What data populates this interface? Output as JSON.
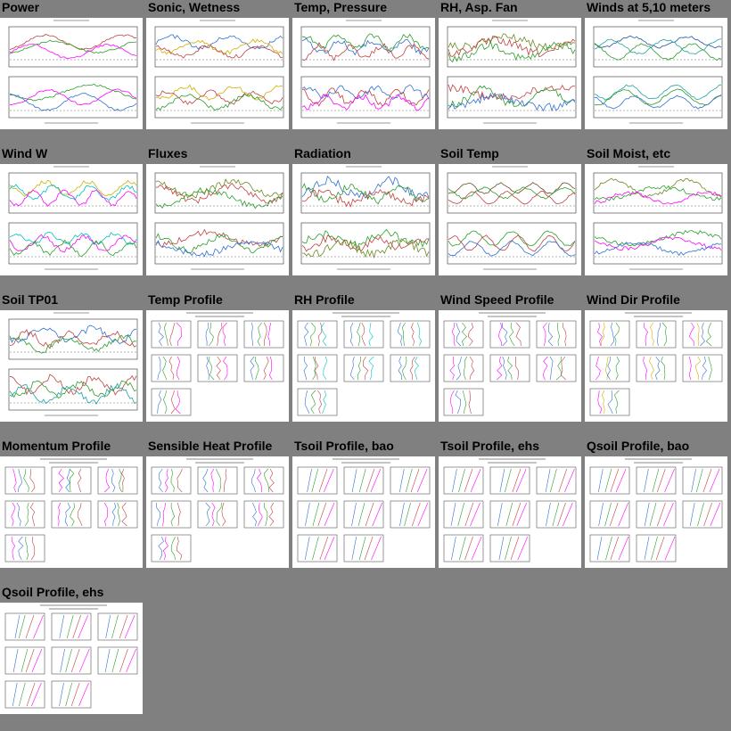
{
  "page": {
    "background": "#808080",
    "plots": [
      {
        "title": "Power",
        "kind": "timeseries",
        "colors": [
          "#c04040",
          "#2a9d2a",
          "#ff00ff",
          "#3070d0"
        ]
      },
      {
        "title": "Sonic, Wetness",
        "kind": "timeseries",
        "colors": [
          "#3070d0",
          "#d0b000",
          "#c04040",
          "#2a9d2a"
        ]
      },
      {
        "title": "Temp, Pressure",
        "kind": "timeseries",
        "colors": [
          "#2a9d2a",
          "#3070d0",
          "#c04040",
          "#ff00ff"
        ]
      },
      {
        "title": "RH, Asp. Fan",
        "kind": "timeseries",
        "colors": [
          "#6a8a20",
          "#c04040",
          "#2a9d2a",
          "#3070d0"
        ]
      },
      {
        "title": "Winds at 5,10 meters",
        "kind": "timeseries",
        "colors": [
          "#2050a0",
          "#20a0a0",
          "#2a9d2a",
          "#3070d0"
        ]
      },
      {
        "title": "Wind W",
        "kind": "timeseries",
        "colors": [
          "#d0b000",
          "#00c0c0",
          "#ff00ff",
          "#2a9d2a"
        ]
      },
      {
        "title": "Fluxes",
        "kind": "timeseries",
        "colors": [
          "#6a8a20",
          "#c04040",
          "#2a9d2a",
          "#3070d0"
        ]
      },
      {
        "title": "Radiation",
        "kind": "timeseries",
        "colors": [
          "#3070d0",
          "#2a9d2a",
          "#c04040",
          "#6a8a20"
        ]
      },
      {
        "title": "Soil Temp",
        "kind": "timeseries",
        "colors": [
          "#6a4a20",
          "#2a9d2a",
          "#c04040",
          "#3070d0"
        ]
      },
      {
        "title": "Soil Moist, etc",
        "kind": "timeseries",
        "colors": [
          "#6a8a20",
          "#2a9d2a",
          "#ff00ff",
          "#3070d0"
        ]
      },
      {
        "title": "Soil TP01",
        "kind": "timeseries",
        "colors": [
          "#3070d0",
          "#c04040",
          "#2a9d2a",
          "#20a0a0"
        ]
      },
      {
        "title": "Temp Profile",
        "kind": "profile",
        "colors": [
          "#3070d0",
          "#2a9d2a",
          "#c04040",
          "#ff00ff"
        ]
      },
      {
        "title": "RH Profile",
        "kind": "profile",
        "colors": [
          "#3070d0",
          "#2a9d2a",
          "#c04040",
          "#00c0c0"
        ]
      },
      {
        "title": "Wind Speed Profile",
        "kind": "profile",
        "colors": [
          "#ff00ff",
          "#3070d0",
          "#2a9d2a",
          "#c04040"
        ]
      },
      {
        "title": "Wind Dir Profile",
        "kind": "profile",
        "colors": [
          "#ff00ff",
          "#d0b000",
          "#3070d0",
          "#2a9d2a"
        ]
      },
      {
        "title": "Momentum Profile",
        "kind": "profile",
        "colors": [
          "#ff00ff",
          "#3070d0",
          "#2a9d2a",
          "#c04040"
        ]
      },
      {
        "title": "Sensible Heat Profile",
        "kind": "profile",
        "colors": [
          "#3070d0",
          "#ff00ff",
          "#2a9d2a",
          "#c04040"
        ]
      },
      {
        "title": "Tsoil Profile, bao",
        "kind": "soilprofile",
        "colors": [
          "#3070d0",
          "#2a9d2a",
          "#c04040",
          "#ff00ff"
        ]
      },
      {
        "title": "Tsoil Profile, ehs",
        "kind": "soilprofile",
        "colors": [
          "#3070d0",
          "#2a9d2a",
          "#c04040",
          "#ff00ff"
        ]
      },
      {
        "title": "Qsoil Profile, bao",
        "kind": "soilprofile",
        "colors": [
          "#3070d0",
          "#2a9d2a",
          "#c04040",
          "#ff00ff"
        ]
      },
      {
        "title": "Qsoil Profile, ehs",
        "kind": "soilprofile",
        "colors": [
          "#3070d0",
          "#2a9d2a",
          "#c04040",
          "#ff00ff"
        ]
      }
    ]
  }
}
